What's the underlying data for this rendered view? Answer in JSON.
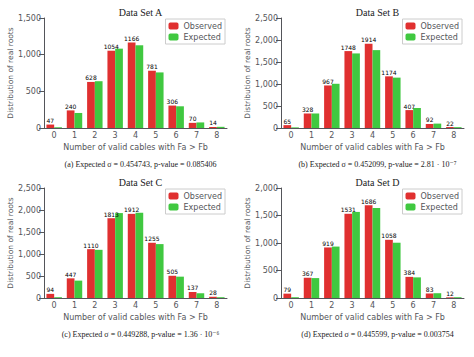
{
  "chart_data": [
    {
      "type": "bar",
      "title": "Data Set A",
      "annotation": "(a) Expected σ = 0.454743, p-value = 0.085406",
      "xlabel": "Number of valid cables with Fa > Fb",
      "ylabel": "Distribution of real roots",
      "categories": [
        "0",
        "1",
        "2",
        "3",
        "4",
        "5",
        "6",
        "7",
        "8"
      ],
      "series": [
        {
          "name": "Observed",
          "color": "#e03030",
          "data_labels": true,
          "values": [
            47,
            240,
            628,
            1054,
            1166,
            781,
            306,
            70,
            14
          ]
        },
        {
          "name": "Expected",
          "color": "#40c840",
          "values": [
            10,
            205,
            638,
            1082,
            1128,
            758,
            296,
            76,
            16
          ]
        }
      ],
      "ylim": [
        0,
        1500
      ],
      "yticks": [
        0,
        500,
        1000,
        1500
      ],
      "grid": false,
      "legend": "upper right"
    },
    {
      "type": "bar",
      "title": "Data Set B",
      "annotation": "(b) Expected σ = 0.452099, p-value = 2.81 · 10⁻⁷",
      "xlabel": "Number of valid cables with Fa > Fb",
      "ylabel": "Distribution of real roots",
      "categories": [
        "0",
        "1",
        "2",
        "3",
        "4",
        "5",
        "6",
        "7",
        "8"
      ],
      "series": [
        {
          "name": "Observed",
          "color": "#e03030",
          "data_labels": true,
          "values": [
            65,
            328,
            967,
            1748,
            1914,
            1174,
            407,
            92,
            22
          ]
        },
        {
          "name": "Expected",
          "color": "#40c840",
          "values": [
            14,
            330,
            1005,
            1695,
            1770,
            1145,
            455,
            100,
            19
          ]
        }
      ],
      "ylim": [
        0,
        2500
      ],
      "yticks": [
        0,
        500,
        1000,
        1500,
        2000,
        2500
      ],
      "grid": false,
      "legend": "upper right"
    },
    {
      "type": "bar",
      "title": "Data Set C",
      "annotation": "(c) Expected σ = 0.449288, p-value = 1.36 · 10⁻⁶",
      "xlabel": "Number of valid cables with Fa > Fb",
      "ylabel": "Distribution of real roots",
      "categories": [
        "0",
        "1",
        "2",
        "3",
        "4",
        "5",
        "6",
        "7",
        "8"
      ],
      "series": [
        {
          "name": "Observed",
          "color": "#e03030",
          "data_labels": true,
          "values": [
            94,
            447,
            1110,
            1813,
            1912,
            1255,
            505,
            137,
            28
          ]
        },
        {
          "name": "Expected",
          "color": "#40c840",
          "values": [
            18,
            395,
            1095,
            1930,
            1935,
            1225,
            485,
            108,
            18
          ]
        }
      ],
      "ylim": [
        0,
        2500
      ],
      "yticks": [
        0,
        500,
        1000,
        1500,
        2000,
        2500
      ],
      "grid": false,
      "legend": "upper right"
    },
    {
      "type": "bar",
      "title": "Data Set D",
      "annotation": "(d) Expected σ = 0.445599, p-value = 0.003754",
      "xlabel": "Number of valid cables with Fa > Fb",
      "ylabel": "Distribution of real roots",
      "categories": [
        "0",
        "1",
        "2",
        "3",
        "4",
        "5",
        "6",
        "7",
        "8"
      ],
      "series": [
        {
          "name": "Observed",
          "color": "#e03030",
          "data_labels": true,
          "values": [
            79,
            367,
            919,
            1531,
            1686,
            1058,
            384,
            83,
            12
          ]
        },
        {
          "name": "Expected",
          "color": "#40c840",
          "values": [
            14,
            362,
            935,
            1565,
            1635,
            1005,
            375,
            87,
            14
          ]
        }
      ],
      "ylim": [
        0,
        2000
      ],
      "yticks": [
        0,
        500,
        1000,
        1500,
        2000
      ],
      "grid": false,
      "legend": "upper right"
    }
  ]
}
